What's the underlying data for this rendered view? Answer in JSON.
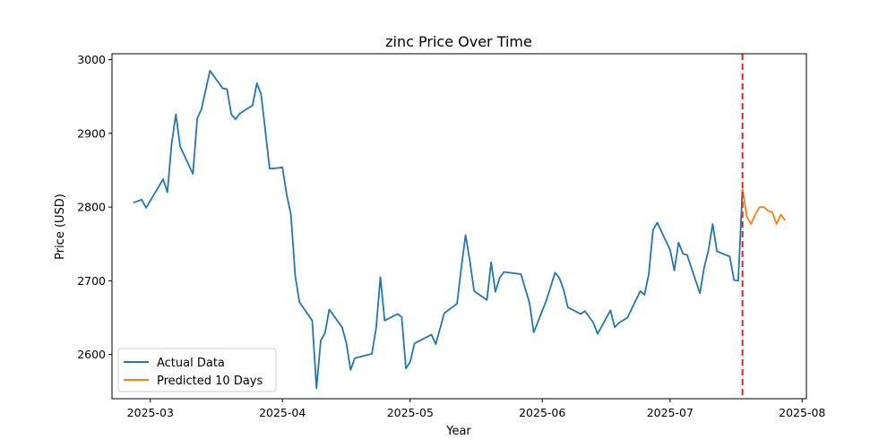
{
  "chart_data": {
    "type": "line",
    "title": "zinc Price Over Time",
    "xlabel": "Year",
    "ylabel": "Price (USD)",
    "xlim": [
      "2025-02-20",
      "2025-08-02"
    ],
    "ylim": [
      2540,
      3008
    ],
    "x_ticks": [
      {
        "date": "2025-03-01",
        "label": "2025-03"
      },
      {
        "date": "2025-04-01",
        "label": "2025-04"
      },
      {
        "date": "2025-05-01",
        "label": "2025-05"
      },
      {
        "date": "2025-06-01",
        "label": "2025-06"
      },
      {
        "date": "2025-07-01",
        "label": "2025-07"
      },
      {
        "date": "2025-08-01",
        "label": "2025-08"
      }
    ],
    "y_ticks": [
      2600,
      2700,
      2800,
      2900,
      3000
    ],
    "grid": false,
    "legend_position": "lower-left",
    "vline": {
      "date": "2025-07-18",
      "color": "#d62728",
      "style": "dashed"
    },
    "series": [
      {
        "name": "Actual Data",
        "color": "#1f77b4",
        "points": [
          [
            "2025-02-25",
            2806
          ],
          [
            "2025-02-27",
            2810
          ],
          [
            "2025-02-28",
            2799
          ],
          [
            "2025-03-03",
            2828
          ],
          [
            "2025-03-04",
            2838
          ],
          [
            "2025-03-05",
            2820
          ],
          [
            "2025-03-06",
            2886
          ],
          [
            "2025-03-07",
            2926
          ],
          [
            "2025-03-08",
            2882
          ],
          [
            "2025-03-11",
            2845
          ],
          [
            "2025-03-12",
            2920
          ],
          [
            "2025-03-13",
            2933
          ],
          [
            "2025-03-15",
            2985
          ],
          [
            "2025-03-18",
            2961
          ],
          [
            "2025-03-19",
            2960
          ],
          [
            "2025-03-20",
            2926
          ],
          [
            "2025-03-21",
            2919
          ],
          [
            "2025-03-22",
            2927
          ],
          [
            "2025-03-25",
            2938
          ],
          [
            "2025-03-26",
            2968
          ],
          [
            "2025-03-27",
            2953
          ],
          [
            "2025-03-28",
            2903
          ],
          [
            "2025-03-29",
            2852
          ],
          [
            "2025-03-31",
            2853
          ],
          [
            "2025-04-01",
            2854
          ],
          [
            "2025-04-02",
            2817
          ],
          [
            "2025-04-03",
            2790
          ],
          [
            "2025-04-04",
            2707
          ],
          [
            "2025-04-05",
            2671
          ],
          [
            "2025-04-08",
            2646
          ],
          [
            "2025-04-09",
            2554
          ],
          [
            "2025-04-10",
            2619
          ],
          [
            "2025-04-11",
            2629
          ],
          [
            "2025-04-12",
            2661
          ],
          [
            "2025-04-15",
            2637
          ],
          [
            "2025-04-16",
            2616
          ],
          [
            "2025-04-17",
            2579
          ],
          [
            "2025-04-18",
            2595
          ],
          [
            "2025-04-22",
            2601
          ],
          [
            "2025-04-23",
            2636
          ],
          [
            "2025-04-24",
            2705
          ],
          [
            "2025-04-25",
            2646
          ],
          [
            "2025-04-28",
            2655
          ],
          [
            "2025-04-29",
            2651
          ],
          [
            "2025-04-30",
            2581
          ],
          [
            "2025-05-01",
            2590
          ],
          [
            "2025-05-02",
            2615
          ],
          [
            "2025-05-06",
            2627
          ],
          [
            "2025-05-07",
            2614
          ],
          [
            "2025-05-09",
            2656
          ],
          [
            "2025-05-12",
            2669
          ],
          [
            "2025-05-13",
            2718
          ],
          [
            "2025-05-14",
            2762
          ],
          [
            "2025-05-15",
            2727
          ],
          [
            "2025-05-16",
            2686
          ],
          [
            "2025-05-19",
            2674
          ],
          [
            "2025-05-20",
            2725
          ],
          [
            "2025-05-21",
            2685
          ],
          [
            "2025-05-22",
            2704
          ],
          [
            "2025-05-23",
            2712
          ],
          [
            "2025-05-27",
            2709
          ],
          [
            "2025-05-29",
            2670
          ],
          [
            "2025-05-30",
            2630
          ],
          [
            "2025-06-02",
            2674
          ],
          [
            "2025-06-04",
            2711
          ],
          [
            "2025-06-05",
            2704
          ],
          [
            "2025-06-06",
            2688
          ],
          [
            "2025-06-07",
            2664
          ],
          [
            "2025-06-10",
            2655
          ],
          [
            "2025-06-11",
            2659
          ],
          [
            "2025-06-13",
            2643
          ],
          [
            "2025-06-14",
            2628
          ],
          [
            "2025-06-17",
            2660
          ],
          [
            "2025-06-18",
            2637
          ],
          [
            "2025-06-19",
            2643
          ],
          [
            "2025-06-21",
            2650
          ],
          [
            "2025-06-24",
            2686
          ],
          [
            "2025-06-25",
            2681
          ],
          [
            "2025-06-26",
            2709
          ],
          [
            "2025-06-27",
            2769
          ],
          [
            "2025-06-28",
            2779
          ],
          [
            "2025-07-01",
            2742
          ],
          [
            "2025-07-02",
            2714
          ],
          [
            "2025-07-03",
            2752
          ],
          [
            "2025-07-04",
            2737
          ],
          [
            "2025-07-05",
            2735
          ],
          [
            "2025-07-08",
            2683
          ],
          [
            "2025-07-09",
            2718
          ],
          [
            "2025-07-10",
            2741
          ],
          [
            "2025-07-11",
            2777
          ],
          [
            "2025-07-12",
            2740
          ],
          [
            "2025-07-15",
            2733
          ],
          [
            "2025-07-16",
            2701
          ],
          [
            "2025-07-17",
            2700
          ],
          [
            "2025-07-18",
            2825
          ]
        ]
      },
      {
        "name": "Predicted 10 Days",
        "color": "#ff7f0e",
        "points": [
          [
            "2025-07-18",
            2825
          ],
          [
            "2025-07-19",
            2787
          ],
          [
            "2025-07-20",
            2777
          ],
          [
            "2025-07-21",
            2790
          ],
          [
            "2025-07-22",
            2800
          ],
          [
            "2025-07-23",
            2800
          ],
          [
            "2025-07-24",
            2795
          ],
          [
            "2025-07-25",
            2793
          ],
          [
            "2025-07-26",
            2777
          ],
          [
            "2025-07-27",
            2790
          ],
          [
            "2025-07-28",
            2782
          ]
        ]
      }
    ]
  }
}
